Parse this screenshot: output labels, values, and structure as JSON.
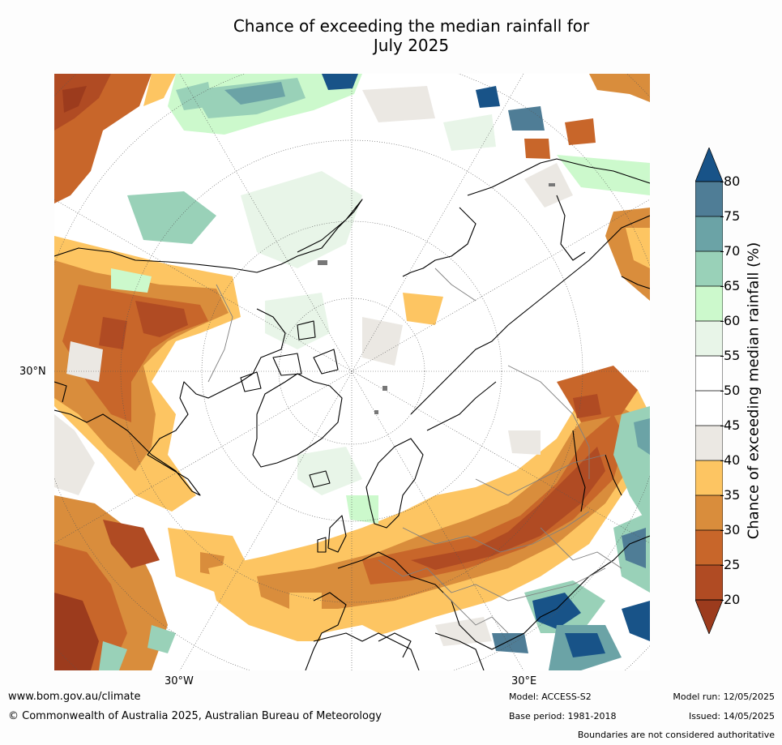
{
  "title": {
    "line1": "Chance of exceeding the median rainfall for",
    "line2": "July 2025"
  },
  "map": {
    "lat_label": "30°N",
    "lon_label_west": "30°W",
    "lon_label_east": "30°E",
    "colors": {
      "c20": "#9c3b1d",
      "c25": "#b04b23",
      "c30": "#c8662a",
      "c35": "#d98d3c",
      "c40": "#fdc562",
      "c45": "#ebe8e3",
      "c50": "#ffffff",
      "c55": "#ffffff",
      "c60": "#e8f5e8",
      "c65": "#ccf9cc",
      "c70": "#99d1b8",
      "c75": "#6ba3a6",
      "c80": "#4f7d96",
      "c80plus": "#185388",
      "land_outline": "#000000",
      "border": "#7f7f7f",
      "graticule": "#555555"
    }
  },
  "colorbar": {
    "ticks": [
      "80",
      "75",
      "70",
      "65",
      "60",
      "55",
      "50",
      "45",
      "40",
      "35",
      "30",
      "25",
      "20"
    ],
    "label": "Chance of exceeding median rainfall (%)"
  },
  "footer": {
    "url": "www.bom.gov.au/climate",
    "copyright": "© Commonwealth of Australia 2025, Australian Bureau of Meteorology",
    "model": "Model: ACCESS-S2",
    "base_period": "Base period: 1981-2018",
    "model_run": "Model run: 12/05/2025",
    "issued": "Issued: 14/05/2025",
    "disclaimer": "Boundaries are not considered authoritative"
  }
}
